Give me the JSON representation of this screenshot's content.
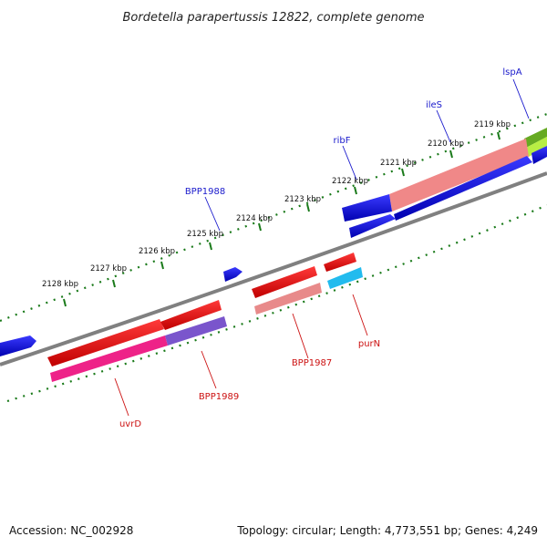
{
  "title": "Bordetella parapertussis 12822, complete genome",
  "footer": {
    "accession": "Accession: NC_002928",
    "summary": "Topology: circular; Length: 4,773,551 bp; Genes: 4,249"
  },
  "ticks": [
    "2119 kbp",
    "2120 kbp",
    "2121 kbp",
    "2122 kbp",
    "2123 kbp",
    "2124 kbp",
    "2125 kbp",
    "2126 kbp",
    "2127 kbp",
    "2128 kbp"
  ],
  "gene_labels": {
    "lspA": "lspA",
    "ileS": "ileS",
    "ribF": "ribF",
    "bpp1988": "BPP1988",
    "bpp1987": "BPP1987",
    "purN": "purN",
    "bpp1989": "BPP1989",
    "uvrD": "uvrD"
  },
  "colors": {
    "forward_label": "#1a1acc",
    "reverse_label": "#cc1111",
    "tick_mark": "#1a7a1a",
    "backbone": "#808080"
  }
}
